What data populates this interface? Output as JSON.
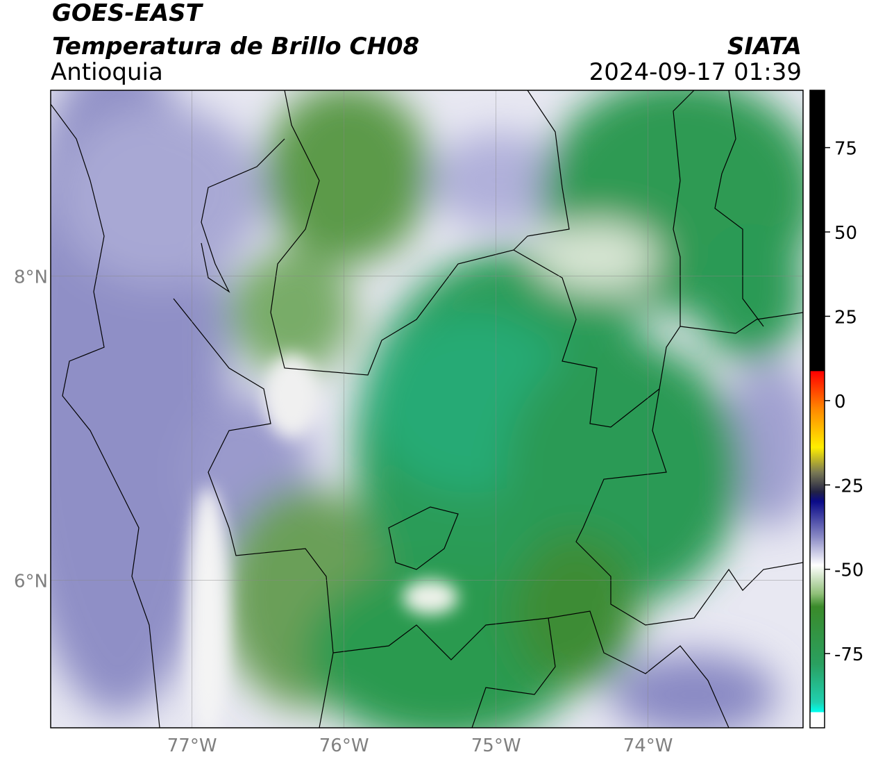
{
  "header": {
    "satellite": "GOES-EAST",
    "product": "Temperatura de Brillo CH08",
    "region": "Antioquia",
    "source": "SIATA",
    "datetime": "2024-09-17 01:39"
  },
  "map": {
    "xlim": [
      -77.93,
      -72.98
    ],
    "ylim": [
      5.03,
      9.22
    ],
    "lon_ticks": [
      {
        "value": -77,
        "label": "77°W"
      },
      {
        "value": -76,
        "label": "76°W"
      },
      {
        "value": -75,
        "label": "75°W"
      },
      {
        "value": -74,
        "label": "74°W"
      }
    ],
    "lat_ticks": [
      {
        "value": 8,
        "label": "8°N"
      },
      {
        "value": 6,
        "label": "6°N"
      }
    ]
  },
  "colorbar": {
    "lim": [
      -97,
      92
    ],
    "ticks": [
      75,
      50,
      25,
      0,
      -25,
      -50,
      -75
    ]
  }
}
